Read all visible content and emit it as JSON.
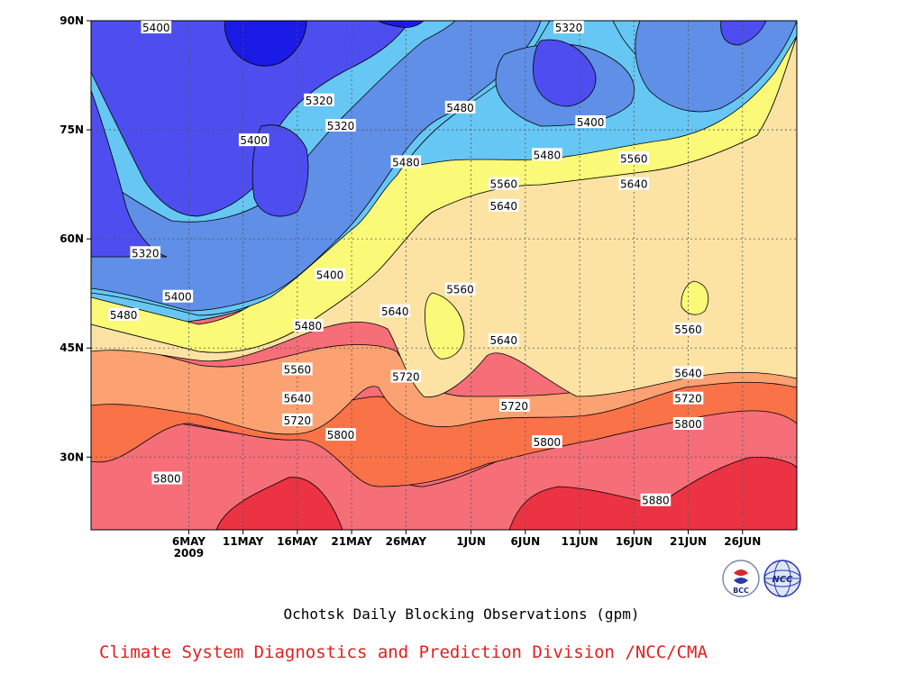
{
  "chart_data": {
    "type": "contour",
    "title": "Ochotsk Daily Blocking Observations (gpm)",
    "x_ticks": [
      "6MAY\n2009",
      "11MAY",
      "16MAY",
      "21MAY",
      "26MAY",
      "1JUN",
      "6JUN",
      "11JUN",
      "16JUN",
      "21JUN",
      "26JUN"
    ],
    "y_ticks": [
      "90N",
      "75N",
      "60N",
      "45N",
      "30N"
    ],
    "ylim_lat": [
      20,
      90
    ],
    "grid": "dotted",
    "legend": "none",
    "contour_levels": [
      5320,
      5400,
      5480,
      5560,
      5640,
      5720,
      5800,
      5880
    ],
    "contour_labels": [
      {
        "date": "3MAY",
        "lat": 89,
        "value": 5400
      },
      {
        "date": "18MAY",
        "lat": 79,
        "value": 5320
      },
      {
        "date": "20MAY",
        "lat": 75.5,
        "value": 5320
      },
      {
        "date": "12MAY",
        "lat": 73.5,
        "value": 5400
      },
      {
        "date": "2MAY",
        "lat": 58,
        "value": 5320
      },
      {
        "date": "19MAY",
        "lat": 55,
        "value": 5400
      },
      {
        "date": "5MAY",
        "lat": 52,
        "value": 5400
      },
      {
        "date": "30APR",
        "lat": 49.5,
        "value": 5480
      },
      {
        "date": "17MAY",
        "lat": 48,
        "value": 5480
      },
      {
        "date": "31MAY",
        "lat": 78,
        "value": 5480
      },
      {
        "date": "26MAY",
        "lat": 70.5,
        "value": 5480
      },
      {
        "date": "10JUN",
        "lat": 89,
        "value": 5320
      },
      {
        "date": "12JUN",
        "lat": 76,
        "value": 5400
      },
      {
        "date": "8JUN",
        "lat": 71.5,
        "value": 5480
      },
      {
        "date": "16JUN",
        "lat": 71,
        "value": 5560
      },
      {
        "date": "4JUN",
        "lat": 67.5,
        "value": 5560
      },
      {
        "date": "4JUN",
        "lat": 64.5,
        "value": 5640
      },
      {
        "date": "16JUN",
        "lat": 67.5,
        "value": 5640
      },
      {
        "date": "31MAY",
        "lat": 53,
        "value": 5560
      },
      {
        "date": "21JUN",
        "lat": 47.5,
        "value": 5560
      },
      {
        "date": "25MAY",
        "lat": 50,
        "value": 5640
      },
      {
        "date": "4JUN",
        "lat": 46,
        "value": 5640
      },
      {
        "date": "21JUN",
        "lat": 41.5,
        "value": 5640
      },
      {
        "date": "16MAY",
        "lat": 42,
        "value": 5560
      },
      {
        "date": "16MAY",
        "lat": 38,
        "value": 5640
      },
      {
        "date": "16MAY",
        "lat": 35,
        "value": 5720
      },
      {
        "date": "26MAY",
        "lat": 41,
        "value": 5720
      },
      {
        "date": "5JUN",
        "lat": 37,
        "value": 5720
      },
      {
        "date": "21JUN",
        "lat": 38,
        "value": 5720
      },
      {
        "date": "20MAY",
        "lat": 33,
        "value": 5800
      },
      {
        "date": "8JUN",
        "lat": 32,
        "value": 5800
      },
      {
        "date": "21JUN",
        "lat": 34.5,
        "value": 5800
      },
      {
        "date": "4MAY",
        "lat": 27,
        "value": 5800
      },
      {
        "date": "18JUN",
        "lat": 24,
        "value": 5880
      }
    ],
    "colors": {
      "lt5320": "#1a1ae6",
      "5320-5400": "#4d4df0",
      "5400-5480": "#5f8fe6",
      "5480-5560": "#66c7f5",
      "5560-5640": "#fafa78",
      "5640-5720": "#fce3a4",
      "5720-5800": "#fca172",
      "5800-5880": "#fa7248",
      "5880-5960": "#f56e78",
      "gt5880": "#eb3344"
    }
  },
  "caption": {
    "title": "Ochotsk Daily Blocking Observations (gpm)",
    "credit": "Climate System Diagnostics and Prediction Division /NCC/CMA"
  },
  "logos": {
    "bcc_text": "BCC",
    "ncc_text": "NCC"
  }
}
